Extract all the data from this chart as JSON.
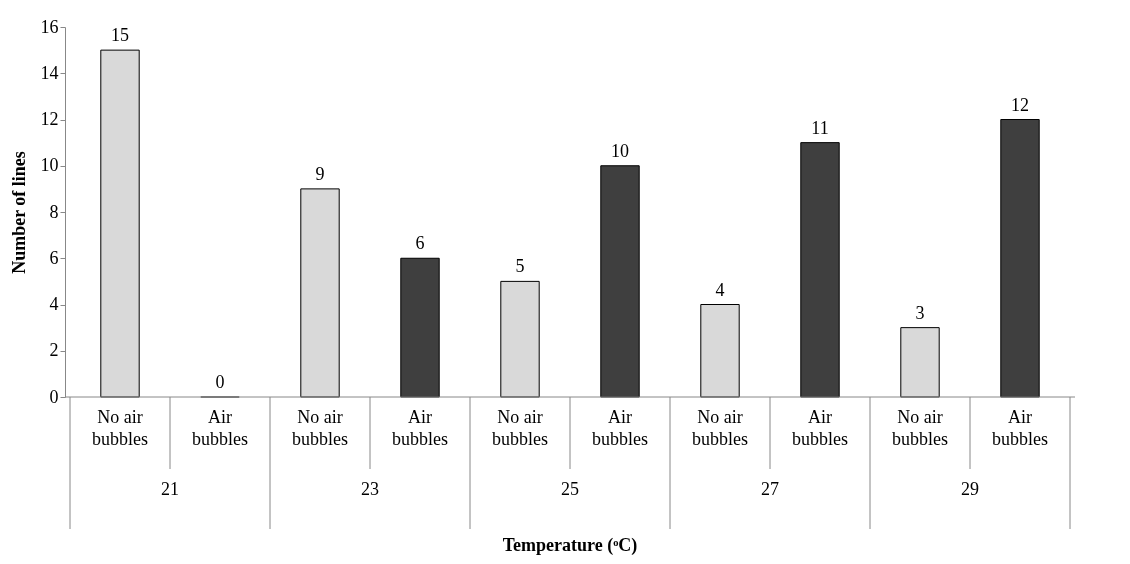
{
  "chart_data": {
    "type": "bar",
    "categories": [
      "21",
      "23",
      "25",
      "27",
      "29"
    ],
    "series": [
      {
        "name": "No air bubbles",
        "color": "#d9d9d9",
        "values": [
          15,
          9,
          5,
          4,
          3
        ]
      },
      {
        "name": "Air bubbles",
        "color": "#3f3f3f",
        "values": [
          0,
          6,
          10,
          11,
          12
        ]
      }
    ],
    "xlabel": "Temperature (ᵒC)",
    "ylabel": "Number of lines",
    "ylim": [
      0,
      16
    ],
    "yticks": [
      0,
      2,
      4,
      6,
      8,
      10,
      12,
      14,
      16
    ],
    "data_labels": true,
    "legend": false,
    "grid": false
  }
}
